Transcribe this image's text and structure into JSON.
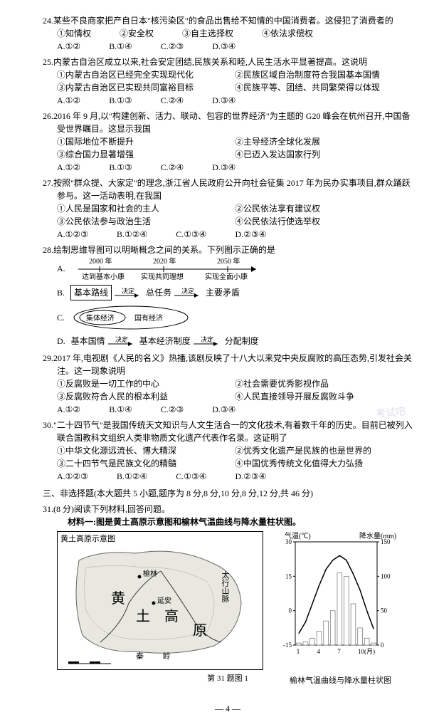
{
  "q24": {
    "stem": "24.某些不良商家把产自日本\"核污染区\"的食品出售给不知情的中国消费者。这侵犯了消费者的",
    "items": [
      "①知情权",
      "②安全权",
      "③自主选择权",
      "④依法求偿权"
    ],
    "opts": [
      "A.①②",
      "B.①④",
      "C.②③",
      "D.③④"
    ]
  },
  "q25": {
    "stem": "25.内蒙古自治区成立以来,社会安定团结,民族关系和睦,人民生活水平显著提高。这说明",
    "items": [
      "①内蒙古自治区已经完全实现现代化",
      "②民族区域自治制度符合我国基本国情",
      "③内蒙古自治区已实现共同富裕目标",
      "④民族平等、团结、共同繁荣得以体现"
    ],
    "opts": [
      "A.①②",
      "B.①③",
      "C.②④",
      "D.③④"
    ]
  },
  "q26": {
    "stem": "26.2016 年 9 月,以\"构建创新、活力、联动、包容的世界经济\"为主题的 G20 峰会在杭州召开,中国备受世界瞩目。这显示我国",
    "items": [
      "①国际地位不断提升",
      "②主导经济全球化发展",
      "③综合国力显著增强",
      "④已迈入发达国家行列"
    ],
    "opts": [
      "A.①②",
      "B.①③",
      "C.②④",
      "D.③④"
    ]
  },
  "q27": {
    "stem": "27.按照\"群众提、大家定\"的理念,浙江省人民政府公开向社会征集 2017 年为民办实事项目,群众踊跃参与。这一活动表明,在我国",
    "items": [
      "①人民是国家和社会的主人",
      "②公民依法享有建议权",
      "③公民依法参与政治生活",
      "④公民依法行使选举权"
    ],
    "opts": [
      "A.①②③",
      "B.①②④",
      "C.①③④",
      "D.②③④"
    ]
  },
  "q28": {
    "stem": "28.绘制思维导图可以明晰概念之间的关系。下列图示正确的是",
    "a_labels": [
      "2000 年",
      "2020 年",
      "2050 年",
      "达到基本小康",
      "实现共同理想",
      "实现全面小康"
    ],
    "b_labels": [
      "基本路线",
      "总任务",
      "主要矛盾",
      "决定",
      "决定"
    ],
    "c_labels": [
      "集体经济",
      "国有经济"
    ],
    "d_labels": [
      "基本国情",
      "基本经济制度",
      "分配制度",
      "决定",
      "决定"
    ]
  },
  "q29": {
    "stem": "29.2017 年,电视剧《人民的名义》热播,该剧反映了十八大以来党中央反腐败的高压态势,引发社会关注。这一现象说明",
    "items": [
      "①反腐败是一切工作的中心",
      "②社会需要优秀影视作品",
      "③反腐败符合人民的根本利益",
      "④人民直接领导开展反腐败斗争"
    ],
    "opts": [
      "A.①②",
      "B.①④",
      "C.②③",
      "D.③④"
    ]
  },
  "q30": {
    "stem": "30.\"二十四节气\"是我国传统天文知识与人文生活合一的文化技术,有着数千年的历史。目前已被列入联合国教科文组织人类非物质文化遗产代表作名录。这证明了",
    "items": [
      "①中华文化源远流长、博大精深",
      "②优秀文化遗产是民族的也是世界的",
      "③二十四节气是民族文化的精髓",
      "④中国优秀传统文化值得大力弘扬"
    ],
    "opts": [
      "A.①②③",
      "B.①②④",
      "C.①③④",
      "D.②③④"
    ]
  },
  "section3": "三、非选择题(本大题共 5 小题,题序为 8 分,8 分,10 分,8 分,12 分,共 46 分)",
  "q31": {
    "stem": "31.(8 分)阅读下列材料,回答问题。",
    "material": "材料一:图是黄土高原示意图和榆林气温曲线与降水量柱状图。"
  },
  "map": {
    "title": "黄土高原示意图",
    "labels": [
      "榆林",
      "延安",
      "黄",
      "高",
      "原",
      "太行山脉",
      "秦 岭",
      "土"
    ],
    "caption": "第 31 题图 1"
  },
  "chart": {
    "temp_label": "气温(℃)",
    "precip_label": "降水量(mm)",
    "temp_ticks": [
      "30",
      "15",
      "0",
      "-15"
    ],
    "precip_ticks": [
      "150",
      "100",
      "50",
      "0"
    ],
    "x_ticks": [
      "1",
      "4",
      "7",
      "10(月)"
    ],
    "caption": "榆林气温曲线与降水量柱状图",
    "temp_values": [
      -10,
      -5,
      3,
      11,
      18,
      22,
      24,
      22,
      16,
      9,
      0,
      -8
    ],
    "precip_values": [
      3,
      5,
      10,
      20,
      35,
      50,
      105,
      100,
      60,
      25,
      10,
      3
    ],
    "temp_color": "#000000",
    "bar_color": "#808080",
    "bar_fill": "#ffffff"
  },
  "page_num": "— 4 —",
  "watermark": "考试吧"
}
